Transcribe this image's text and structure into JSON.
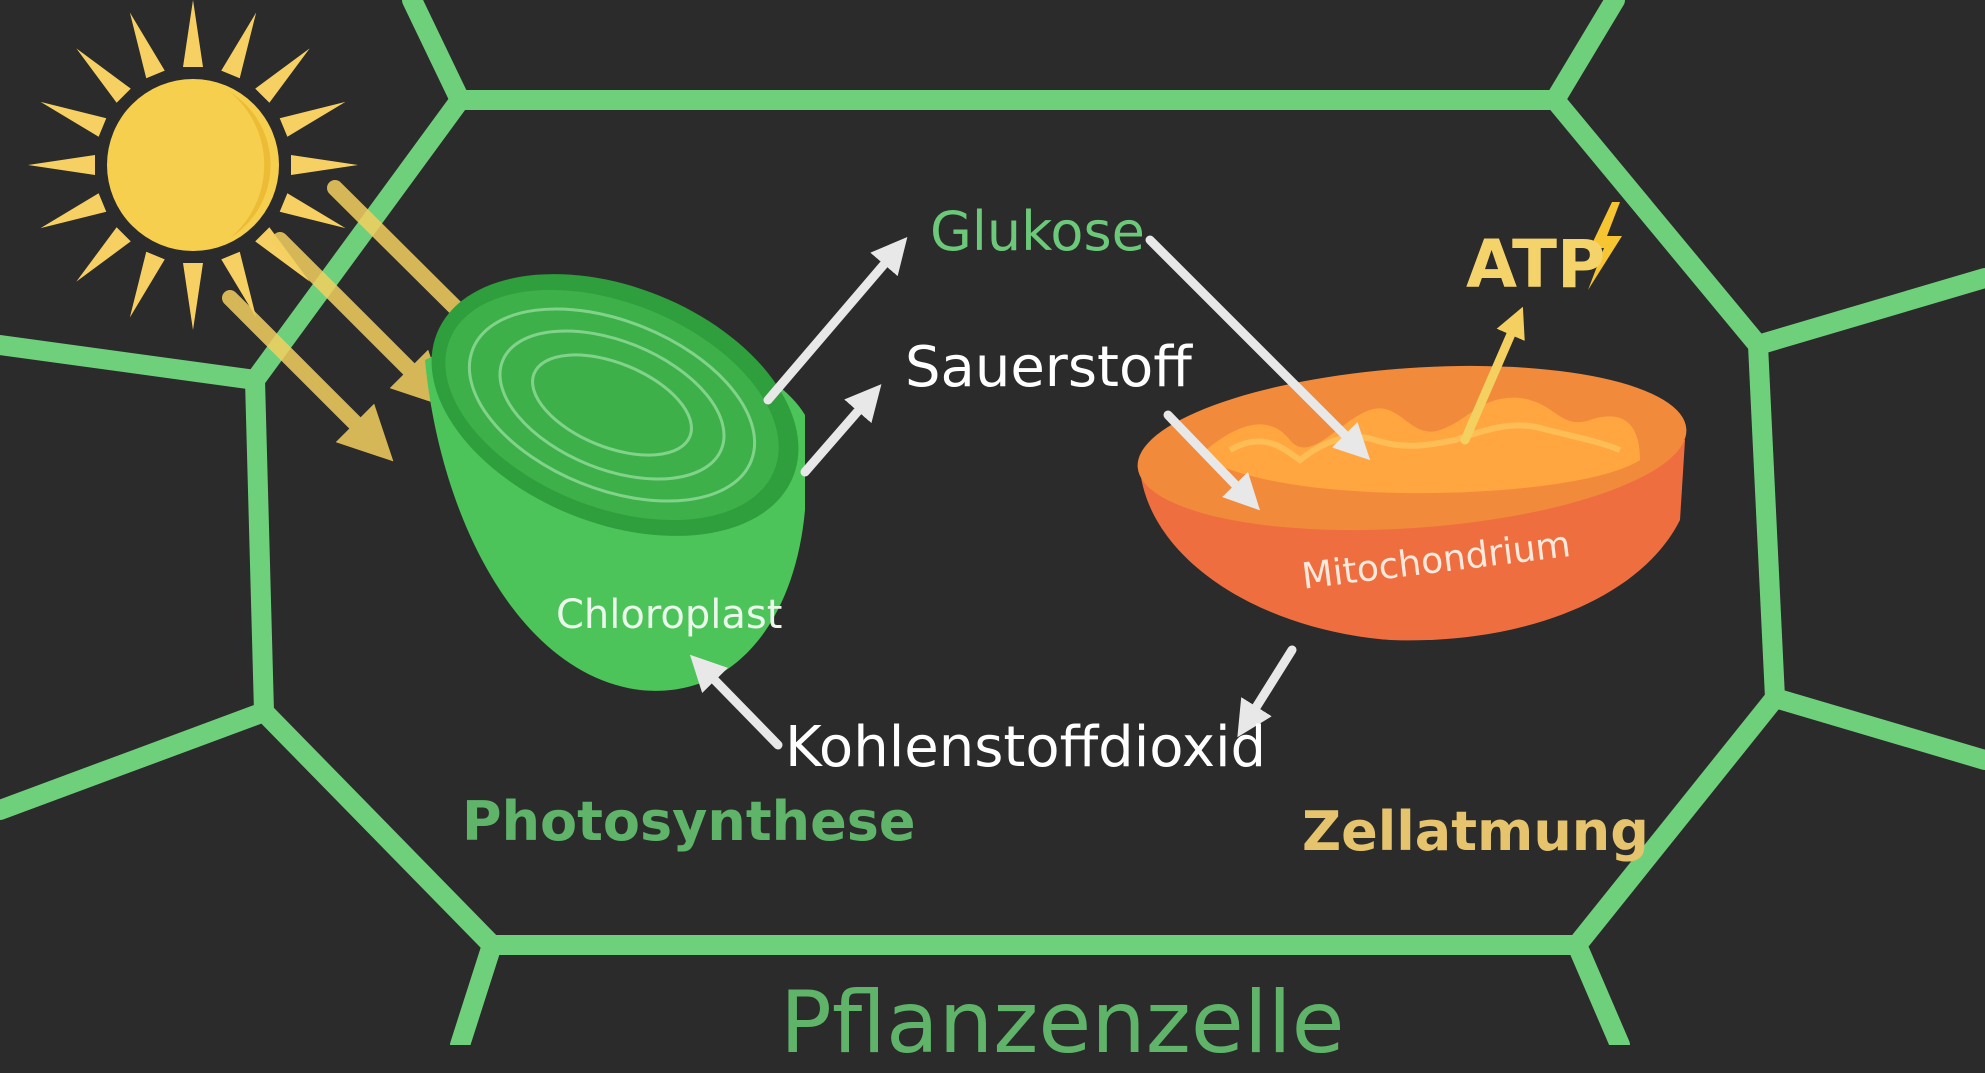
{
  "labels": {
    "glukose": "Glukose",
    "sauerstoff": "Sauerstoff",
    "kohlenstoffdioxid": "Kohlenstoffdioxid",
    "atp": "ATP",
    "chloroplast": "Chloroplast",
    "mitochondrium": "Mitochondrium",
    "photosynthese": "Photosynthese",
    "zellatmung": "Zellatmung",
    "pflanzenzelle": "Pflanzenzelle"
  },
  "colors": {
    "background": "#2b2b2b",
    "cell_wall": "#6fd07c",
    "sun": "#f7cf4f",
    "chloroplast": "#3fb54b",
    "mitochondrion": "#f06a3a",
    "arrow_white": "#e8e8e8",
    "arrow_yellow": "#f4d060"
  },
  "icons": [
    "sun-icon",
    "lightning-icon"
  ]
}
